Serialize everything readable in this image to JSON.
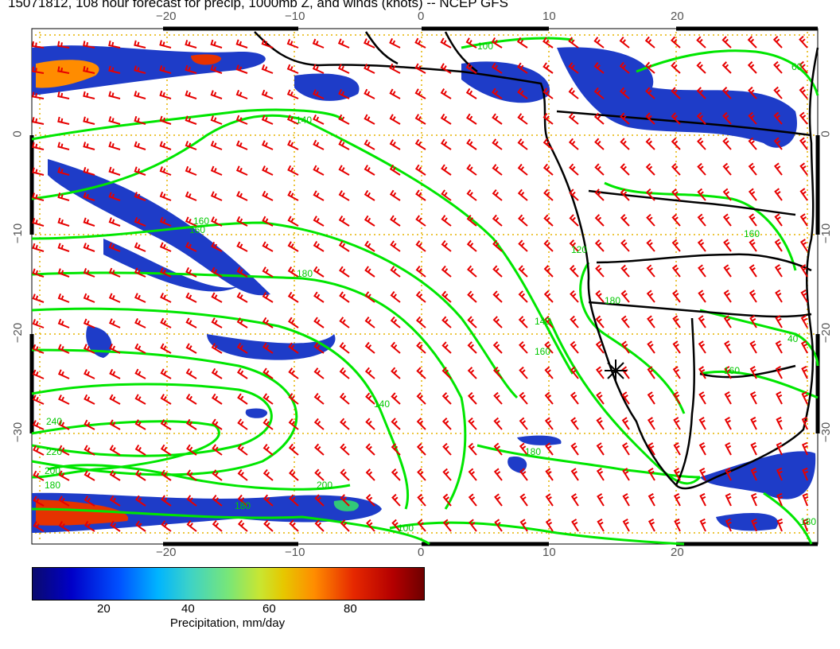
{
  "title": "15071812, 108 hour forecast for precip, 1000mb Z, and winds (knots) -- NCEP GFS",
  "lon_ticks": [
    "−20",
    "−10",
    "0",
    "10",
    "20"
  ],
  "lat_ticks": [
    "0",
    "−10",
    "−20",
    "−30"
  ],
  "contour_labels": [
    "100",
    "60",
    "140",
    "160",
    "180",
    "120",
    "140",
    "160",
    "140",
    "160",
    "180",
    "180",
    "240",
    "220",
    "200",
    "180",
    "200",
    "180",
    "160",
    "180",
    "160",
    "40",
    "100"
  ],
  "colorbar": {
    "ticks": [
      "20",
      "40",
      "60",
      "80"
    ],
    "label": "Precipitation, mm/day"
  },
  "colors": {
    "contour": "#00e600",
    "barb": "#e60000",
    "grid": "#e6b400",
    "coast": "#000000"
  },
  "marker": "asterisk"
}
